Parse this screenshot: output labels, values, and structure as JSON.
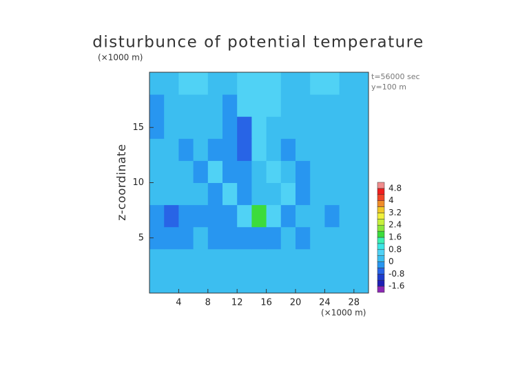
{
  "chart_data": {
    "type": "contour",
    "title": "disturbunce of potential temperature",
    "y_unit_label": "(×1000 m)",
    "x_unit_label": "(×1000 m)",
    "ylabel": "z-coordinate",
    "annotations": [
      "t=56000 sec",
      "y=100 m"
    ],
    "x": [
      0,
      2,
      4,
      6,
      8,
      10,
      12,
      14,
      16,
      18,
      20,
      22,
      24,
      26,
      28,
      30
    ],
    "y": [
      0,
      2,
      4,
      6,
      8,
      10,
      12,
      14,
      16,
      18,
      20
    ],
    "z": [
      [
        0.2,
        0.2,
        0.2,
        0.2,
        0.2,
        0.2,
        0.2,
        0.2,
        0.2,
        0.2,
        0.2,
        0.2,
        0.2,
        0.2,
        0.2
      ],
      [
        0.2,
        0.2,
        0.2,
        0.2,
        0.2,
        0.2,
        0.2,
        0.2,
        0.2,
        0.2,
        0.2,
        0.2,
        0.2,
        0.2,
        0.2
      ],
      [
        -0.2,
        -0.2,
        -0.2,
        0.2,
        -0.2,
        -0.2,
        -0.2,
        -0.2,
        -0.2,
        0.2,
        -0.2,
        0.2,
        0.2,
        0.2,
        0.2
      ],
      [
        -0.2,
        -0.6,
        -0.2,
        -0.2,
        -0.2,
        -0.2,
        0.6,
        1.8,
        0.6,
        -0.2,
        0.2,
        0.2,
        -0.2,
        0.2,
        0.2
      ],
      [
        0.2,
        0.2,
        0.2,
        0.2,
        -0.2,
        0.6,
        -0.2,
        0.2,
        0.2,
        0.6,
        -0.2,
        0.2,
        0.2,
        0.2,
        0.2
      ],
      [
        0.2,
        0.2,
        0.2,
        -0.2,
        0.6,
        -0.2,
        -0.2,
        0.2,
        0.6,
        0.2,
        -0.2,
        0.2,
        0.2,
        0.2,
        0.2
      ],
      [
        0.2,
        0.2,
        -0.2,
        0.2,
        -0.2,
        -0.2,
        -0.6,
        0.6,
        0.2,
        -0.2,
        0.2,
        0.2,
        0.2,
        0.2,
        0.2
      ],
      [
        -0.2,
        0.2,
        0.2,
        0.2,
        0.2,
        -0.2,
        -0.6,
        0.6,
        0.2,
        0.2,
        0.2,
        0.2,
        0.2,
        0.2,
        0.2
      ],
      [
        -0.2,
        0.2,
        0.2,
        0.2,
        0.2,
        -0.2,
        0.6,
        0.6,
        0.6,
        0.2,
        0.2,
        0.2,
        0.2,
        0.2,
        0.2
      ],
      [
        0.2,
        0.2,
        0.6,
        0.6,
        0.2,
        0.2,
        0.6,
        0.6,
        0.6,
        0.2,
        0.2,
        0.6,
        0.6,
        0.2,
        0.2
      ]
    ],
    "xlim": [
      0,
      30
    ],
    "ylim": [
      0,
      20
    ],
    "xticks": [
      4,
      8,
      12,
      16,
      20,
      24,
      28
    ],
    "yticks": [
      5,
      10,
      15
    ],
    "colorbar": {
      "levels": [
        -2.0,
        -1.6,
        -1.2,
        -0.8,
        -0.4,
        0,
        0.4,
        0.8,
        1.2,
        1.6,
        2.0,
        2.4,
        2.8,
        3.2,
        3.6,
        4.0,
        4.4,
        4.8,
        5.2
      ],
      "colors": [
        "#8c28b4",
        "#1e1eb4",
        "#1e3ccc",
        "#2864e6",
        "#2896f0",
        "#3cbef0",
        "#50d2f5",
        "#3ce6e6",
        "#3cf0b4",
        "#3cdc3c",
        "#8ce63c",
        "#c8f03c",
        "#f0f03c",
        "#f0c828",
        "#f08c28",
        "#f04628",
        "#f01e1e",
        "#f08c8c"
      ],
      "ticks": [
        -1.6,
        -0.8,
        0,
        0.8,
        1.6,
        2.4,
        3.2,
        4,
        4.8
      ]
    }
  }
}
